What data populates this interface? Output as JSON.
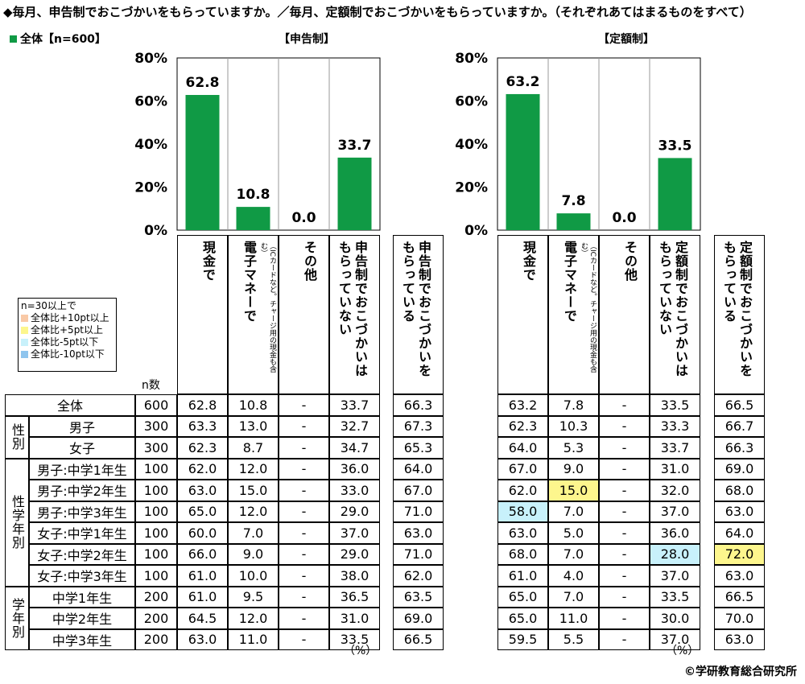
{
  "title": "◆毎月、申告制でおこづかいをもらっていますか。／毎月、定額制でおこづかいをもらっていますか。（それぞれあてはまるものをすべて）",
  "legend": {
    "label": "全体【n=600】",
    "color": "#109a45"
  },
  "highlight_legend": {
    "header": "n=30以上で",
    "items": [
      {
        "label": "全体比+10pt以上",
        "color": "#f9c9a6"
      },
      {
        "label": "全体比+5pt以上",
        "color": "#fdf68d"
      },
      {
        "label": "全体比-5pt以下",
        "color": "#c8f1fb"
      },
      {
        "label": "全体比-10pt以下",
        "color": "#8fc5ee"
      }
    ]
  },
  "n_label": "n数",
  "percent_label": "（%）",
  "copyright": "©学研教育総合研究所",
  "chart_data": [
    {
      "type": "bar",
      "title": "【申告制】",
      "categories": [
        "現金で",
        "電子マネーで（ICカードなど。チャージ用の現金も含む）",
        "その他",
        "申告制でおこづかいはもらっていない"
      ],
      "values": [
        62.8,
        10.8,
        0.0,
        33.7
      ],
      "ylim": [
        0,
        80
      ],
      "yticks": [
        "0%",
        "20%",
        "40%",
        "60%",
        "80%"
      ],
      "grid": false,
      "color": "#109a45"
    },
    {
      "type": "bar",
      "title": "【定額制】",
      "categories": [
        "現金で",
        "電子マネーで（ICカードなど。チャージ用の現金も含む）",
        "その他",
        "定額制でおこづかいはもらっていない"
      ],
      "values": [
        63.2,
        7.8,
        0.0,
        33.5
      ],
      "ylim": [
        0,
        80
      ],
      "yticks": [
        "0%",
        "20%",
        "40%",
        "60%",
        "80%"
      ],
      "grid": false,
      "color": "#109a45"
    }
  ],
  "headers": {
    "left": [
      {
        "main": "現金で",
        "sub": ""
      },
      {
        "main": "電子マネーで",
        "sub": "（ICカードなど。チャージ用の現金も含む）"
      },
      {
        "main": "その他",
        "sub": ""
      },
      {
        "main": "申告制でおこづかいはもらっていない",
        "sub": ""
      }
    ],
    "left_extra": "申告制でおこづかいをもらっている",
    "right": [
      {
        "main": "現金で",
        "sub": ""
      },
      {
        "main": "電子マネーで",
        "sub": "（ICカードなど。チャージ用の現金も含む）"
      },
      {
        "main": "その他",
        "sub": ""
      },
      {
        "main": "定額制でおこづかいはもらっていない",
        "sub": ""
      }
    ],
    "right_extra": "定額制でおこづかいをもらっている"
  },
  "groups": [
    {
      "label": "",
      "rows": [
        0
      ]
    },
    {
      "label": "性別",
      "rows": [
        1,
        2
      ]
    },
    {
      "label": "性学年別",
      "rows": [
        3,
        4,
        5,
        6,
        7,
        8
      ]
    },
    {
      "label": "学年別",
      "rows": [
        9,
        10,
        11
      ]
    }
  ],
  "rows": [
    {
      "label": "全体",
      "n": "600",
      "left": [
        "62.8",
        "10.8",
        "-",
        "33.7"
      ],
      "left_extra": "66.3",
      "right": [
        "63.2",
        "7.8",
        "-",
        "33.5"
      ],
      "right_extra": "66.5",
      "hl": {}
    },
    {
      "label": "男子",
      "n": "300",
      "left": [
        "63.3",
        "13.0",
        "-",
        "32.7"
      ],
      "left_extra": "67.3",
      "right": [
        "62.3",
        "10.3",
        "-",
        "33.3"
      ],
      "right_extra": "66.7",
      "hl": {}
    },
    {
      "label": "女子",
      "n": "300",
      "left": [
        "62.3",
        "8.7",
        "-",
        "34.7"
      ],
      "left_extra": "65.3",
      "right": [
        "64.0",
        "5.3",
        "-",
        "33.7"
      ],
      "right_extra": "66.3",
      "hl": {}
    },
    {
      "label": "男子:中学1年生",
      "n": "100",
      "left": [
        "62.0",
        "12.0",
        "-",
        "36.0"
      ],
      "left_extra": "64.0",
      "right": [
        "67.0",
        "9.0",
        "-",
        "31.0"
      ],
      "right_extra": "69.0",
      "hl": {}
    },
    {
      "label": "男子:中学2年生",
      "n": "100",
      "left": [
        "63.0",
        "15.0",
        "-",
        "33.0"
      ],
      "left_extra": "67.0",
      "right": [
        "62.0",
        "15.0",
        "-",
        "32.0"
      ],
      "right_extra": "68.0",
      "hl": {
        "r1": "#fdf68d"
      }
    },
    {
      "label": "男子:中学3年生",
      "n": "100",
      "left": [
        "65.0",
        "12.0",
        "-",
        "29.0"
      ],
      "left_extra": "71.0",
      "right": [
        "58.0",
        "7.0",
        "-",
        "37.0"
      ],
      "right_extra": "63.0",
      "hl": {
        "r0": "#c8f1fb"
      }
    },
    {
      "label": "女子:中学1年生",
      "n": "100",
      "left": [
        "60.0",
        "7.0",
        "-",
        "37.0"
      ],
      "left_extra": "63.0",
      "right": [
        "63.0",
        "5.0",
        "-",
        "36.0"
      ],
      "right_extra": "64.0",
      "hl": {}
    },
    {
      "label": "女子:中学2年生",
      "n": "100",
      "left": [
        "66.0",
        "9.0",
        "-",
        "29.0"
      ],
      "left_extra": "71.0",
      "right": [
        "68.0",
        "7.0",
        "-",
        "28.0"
      ],
      "right_extra": "72.0",
      "hl": {
        "r3": "#c8f1fb",
        "re": "#fdf68d"
      }
    },
    {
      "label": "女子:中学3年生",
      "n": "100",
      "left": [
        "61.0",
        "10.0",
        "-",
        "38.0"
      ],
      "left_extra": "62.0",
      "right": [
        "61.0",
        "4.0",
        "-",
        "37.0"
      ],
      "right_extra": "63.0",
      "hl": {}
    },
    {
      "label": "中学1年生",
      "n": "200",
      "left": [
        "61.0",
        "9.5",
        "-",
        "36.5"
      ],
      "left_extra": "63.5",
      "right": [
        "65.0",
        "7.0",
        "-",
        "33.5"
      ],
      "right_extra": "66.5",
      "hl": {}
    },
    {
      "label": "中学2年生",
      "n": "200",
      "left": [
        "64.5",
        "12.0",
        "-",
        "31.0"
      ],
      "left_extra": "69.0",
      "right": [
        "65.0",
        "11.0",
        "-",
        "30.0"
      ],
      "right_extra": "70.0",
      "hl": {}
    },
    {
      "label": "中学3年生",
      "n": "200",
      "left": [
        "63.0",
        "11.0",
        "-",
        "33.5"
      ],
      "left_extra": "66.5",
      "right": [
        "59.5",
        "5.5",
        "-",
        "37.0"
      ],
      "right_extra": "63.0",
      "hl": {}
    }
  ]
}
